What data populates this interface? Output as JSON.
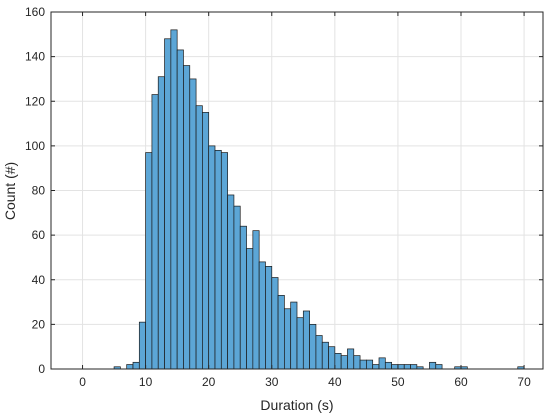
{
  "chart_data": {
    "type": "bar",
    "title": "",
    "xlabel": "Duration (s)",
    "ylabel": "Count (#)",
    "xlim": [
      -5,
      73
    ],
    "ylim": [
      0,
      160
    ],
    "xticks": [
      0,
      10,
      20,
      30,
      40,
      50,
      60,
      70
    ],
    "yticks": [
      0,
      20,
      40,
      60,
      80,
      100,
      120,
      140,
      160
    ],
    "xtick_labels": [
      "0",
      "10",
      "20",
      "30",
      "40",
      "50",
      "60",
      "70"
    ],
    "ytick_labels": [
      "0",
      "20",
      "40",
      "60",
      "80",
      "100",
      "120",
      "140",
      "160"
    ],
    "grid": true,
    "bin_width": 1,
    "bin_starts": [
      5,
      6,
      7,
      8,
      9,
      10,
      11,
      12,
      13,
      14,
      15,
      16,
      17,
      18,
      19,
      20,
      21,
      22,
      23,
      24,
      25,
      26,
      27,
      28,
      29,
      30,
      31,
      32,
      33,
      34,
      35,
      36,
      37,
      38,
      39,
      40,
      41,
      42,
      43,
      44,
      45,
      46,
      47,
      48,
      49,
      50,
      51,
      52,
      53,
      54,
      55,
      56,
      57,
      58,
      59,
      60,
      61,
      62,
      63,
      64,
      65,
      66,
      67,
      68,
      69
    ],
    "counts": [
      1,
      0,
      2,
      3,
      21,
      97,
      123,
      131,
      148,
      152,
      143,
      136,
      130,
      118,
      115,
      100,
      98,
      97,
      78,
      73,
      64,
      54,
      62,
      48,
      46,
      41,
      33,
      27,
      30,
      23,
      26,
      20,
      15,
      12,
      10,
      7,
      6,
      9,
      6,
      4,
      4,
      2,
      5,
      3,
      2,
      2,
      2,
      2,
      1,
      0,
      3,
      2,
      0,
      0,
      1,
      1,
      0,
      0,
      0,
      0,
      0,
      0,
      0,
      0,
      1
    ],
    "colors": {
      "bar_fill": "#5ca6d6",
      "bar_edge": "#1a1a1a",
      "grid": "#e3e3e3",
      "axis": "#262626"
    }
  }
}
